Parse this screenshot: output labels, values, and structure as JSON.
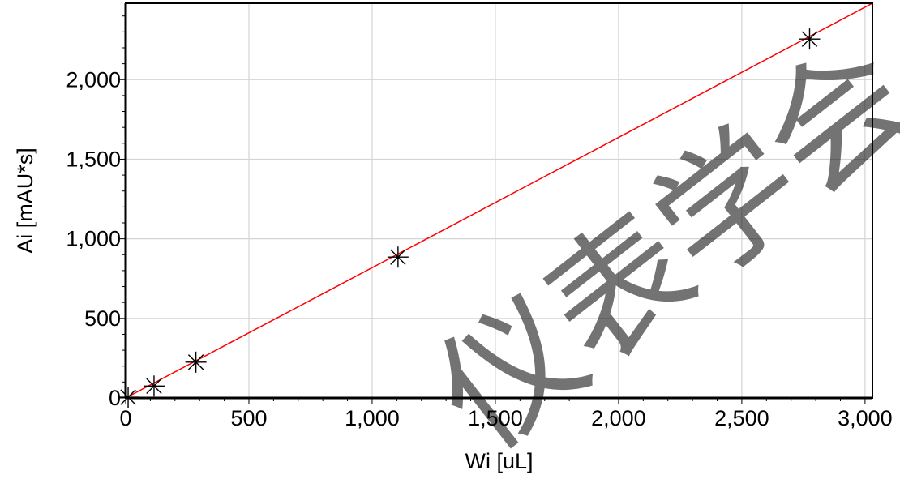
{
  "chart_data": {
    "type": "scatter",
    "xlabel": "Wi [uL]",
    "ylabel": "Ai [mAU*s]",
    "xlim": [
      0,
      3030
    ],
    "ylim": [
      0,
      2480
    ],
    "x_ticks": [
      0,
      500,
      1000,
      1500,
      2000,
      2500,
      3000
    ],
    "x_tick_labels": [
      "0",
      "500",
      "1,000",
      "1,500",
      "2,000",
      "2,500",
      "3,000"
    ],
    "y_ticks": [
      0,
      500,
      1000,
      1500,
      2000
    ],
    "y_tick_labels": [
      "0",
      "500",
      "1,000",
      "1,500",
      "2,000"
    ],
    "grid": true,
    "points": {
      "x": [
        10,
        115,
        285,
        1105,
        2775
      ],
      "y": [
        5,
        75,
        225,
        885,
        2255
      ]
    },
    "fit_line": {
      "x": [
        0,
        3030
      ],
      "y": [
        0,
        2480
      ]
    },
    "colors": {
      "fit_line": "#ff0000",
      "markers": "#000000",
      "grid": "#d4d4d4",
      "watermark": "#c8c8c8"
    }
  },
  "watermark": {
    "text": "仪表学会"
  }
}
